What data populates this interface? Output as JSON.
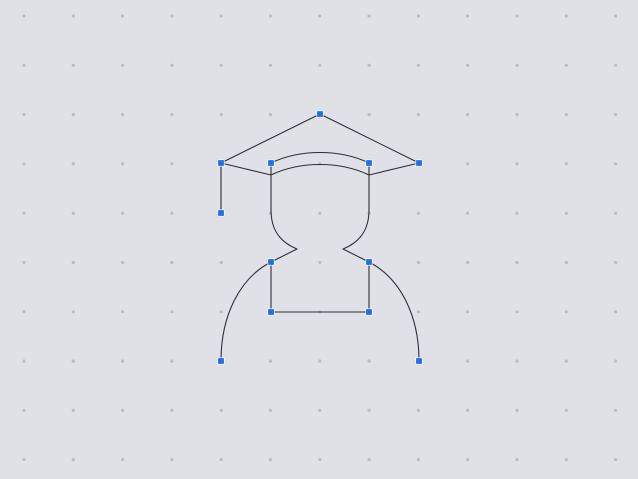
{
  "canvas": {
    "background_color": "#dfe1e6",
    "grid_dot_color": "#b9bcc2",
    "stroke_color": "#2b2f36",
    "anchor_color": "#1f6fe8"
  },
  "icon": {
    "name": "graduate-icon"
  }
}
